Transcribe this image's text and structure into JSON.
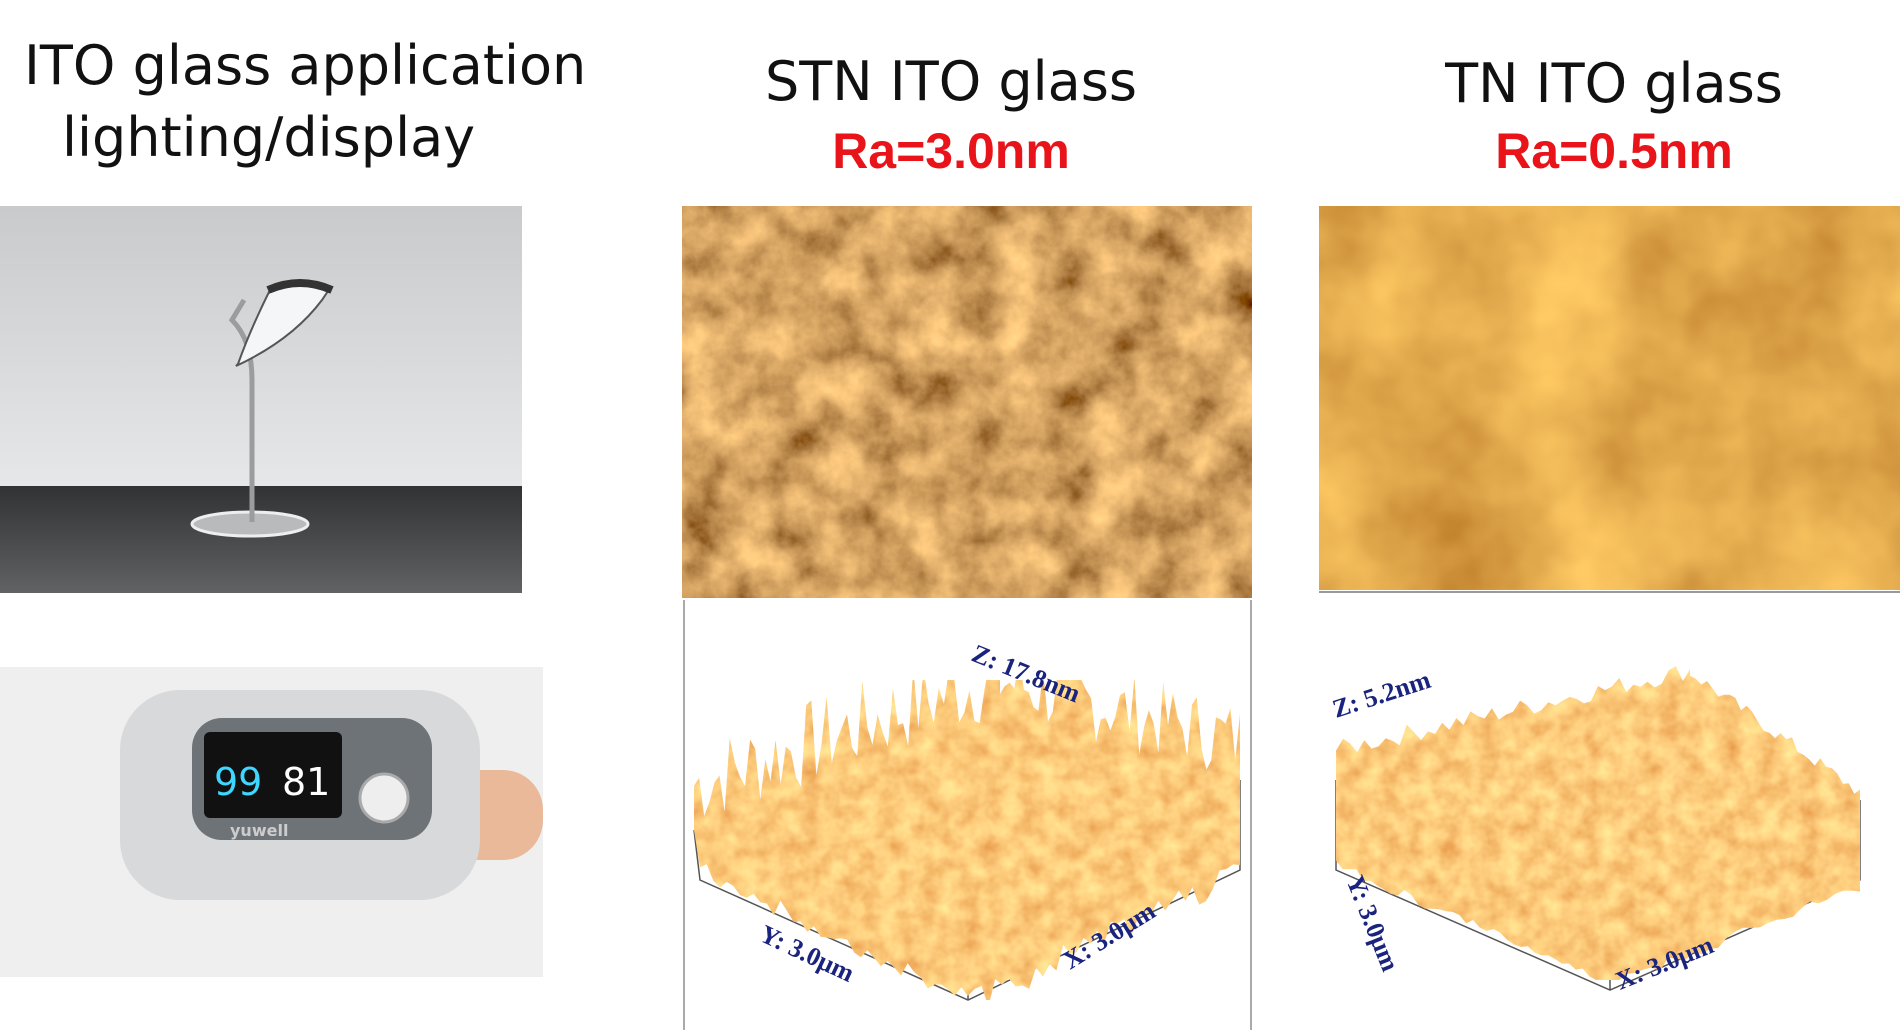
{
  "left": {
    "title_line1": "ITO glass application",
    "title_line2": "lighting/display",
    "oximeter": {
      "spo2": "99",
      "pr": "81",
      "brand": "yuwell"
    }
  },
  "stn": {
    "title": "STN ITO glass",
    "ra": "Ra=3.0nm",
    "z_label": "Z: 17.8nm",
    "y_label": "Y: 3.0μm",
    "x_label": "X: 3.0μm"
  },
  "tn": {
    "title": "TN ITO glass",
    "ra": "Ra=0.5nm",
    "z_label": "Z: 5.2nm",
    "y_label": "Y: 3.0μm",
    "x_label": "X: 3.0μm"
  }
}
